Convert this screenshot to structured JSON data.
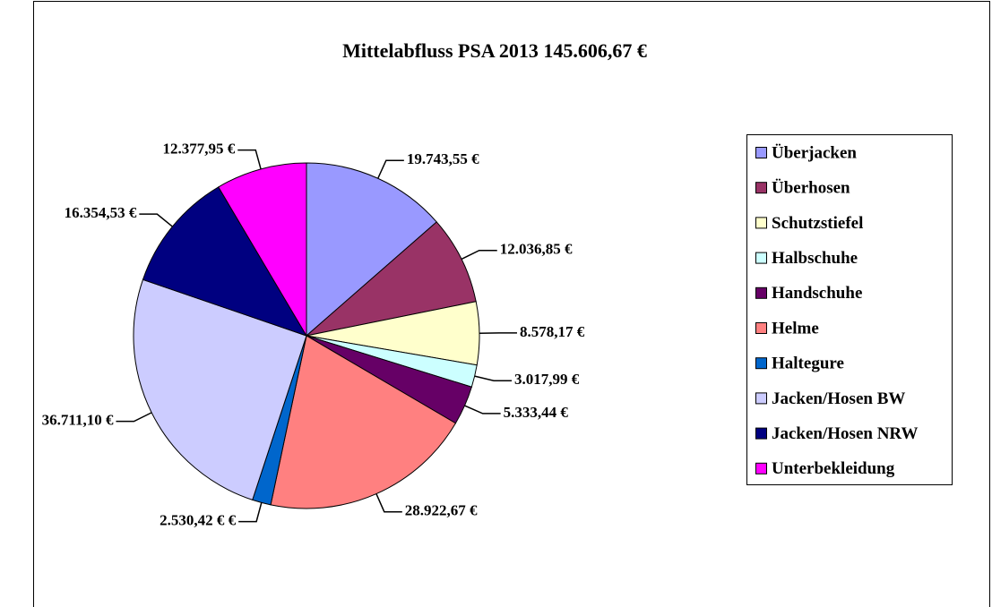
{
  "chart_data": {
    "type": "pie",
    "title": "Mittelabfluss PSA 2013 145.606,67 €",
    "categories": [
      "Überjacken",
      "Überhosen",
      "Schutzstiefel",
      "Halbschuhe",
      "Handschuhe",
      "Helme",
      "Haltegure",
      "Jacken/Hosen BW",
      "Jacken/Hosen NRW",
      "Unterbekleidung"
    ],
    "values": [
      19743.55,
      12036.85,
      8578.17,
      3017.99,
      5333.44,
      28922.67,
      2530.42,
      36711.1,
      16354.53,
      12377.95
    ],
    "value_labels": [
      "19.743,55 €",
      "12.036,85 €",
      "8.578,17 €",
      "3.017,99 €",
      "5.333,44 €",
      "28.922,67 €",
      "2.530,42 € €",
      "36.711,10 €",
      "16.354,53 €",
      "12.377,95 €"
    ],
    "colors": [
      "#9999ff",
      "#993366",
      "#ffffcc",
      "#ccffff",
      "#660066",
      "#ff8080",
      "#0066cc",
      "#ccccff",
      "#000080",
      "#ff00ff"
    ],
    "legend": "right"
  }
}
